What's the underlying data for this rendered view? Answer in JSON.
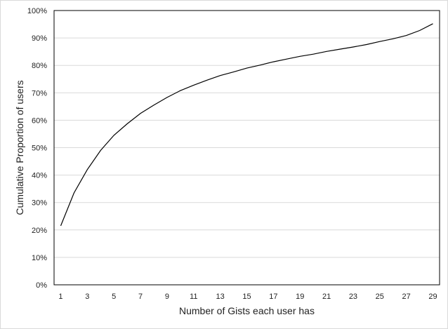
{
  "chart_data": {
    "type": "line",
    "title": "",
    "xlabel": "Number  of Gists each user has",
    "ylabel": "Cumulative Proportion  of users",
    "x_ticks": [
      "1",
      "3",
      "5",
      "7",
      "9",
      "11",
      "13",
      "15",
      "17",
      "19",
      "21",
      "23",
      "25",
      "27",
      "29"
    ],
    "y_ticks": [
      "0%",
      "10%",
      "20%",
      "30%",
      "40%",
      "50%",
      "60%",
      "70%",
      "80%",
      "90%",
      "100%"
    ],
    "xlim": [
      1,
      29
    ],
    "ylim": [
      0,
      100
    ],
    "grid": "horizontal",
    "legend": "none",
    "series": [
      {
        "x": [
          1,
          2,
          3,
          4,
          5,
          6,
          7,
          8,
          9,
          10,
          11,
          12,
          13,
          14,
          15,
          16,
          17,
          18,
          19,
          20,
          21,
          22,
          23,
          24,
          25,
          26,
          27,
          28,
          29
        ],
        "values": [
          21.5,
          33.5,
          42,
          49,
          54.5,
          58.7,
          62.5,
          65.5,
          68.3,
          70.8,
          72.8,
          74.6,
          76.3,
          77.6,
          79,
          80.1,
          81.3,
          82.3,
          83.3,
          84.1,
          85.1,
          85.9,
          86.7,
          87.6,
          88.7,
          89.7,
          90.9,
          92.7,
          95.2
        ],
        "color": "#000000"
      }
    ]
  }
}
